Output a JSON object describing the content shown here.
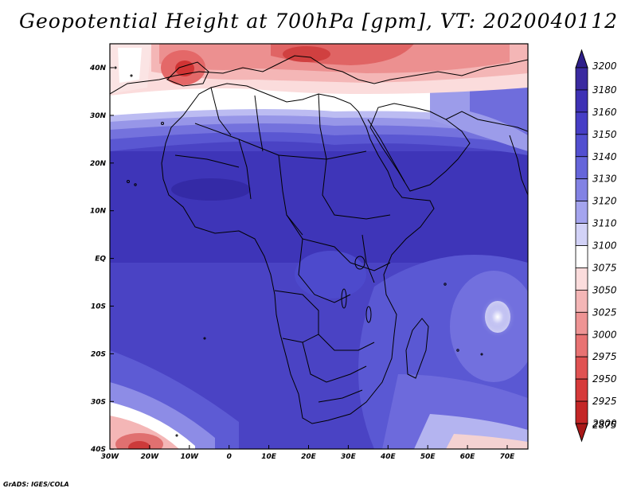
{
  "title": "Geopotential Height at 700hPa [gpm], VT: 2020040112",
  "credit": "GrADS: IGES/COLA",
  "map": {
    "lon_labels": [
      "30W",
      "20W",
      "10W",
      "0",
      "10E",
      "20E",
      "30E",
      "40E",
      "50E",
      "60E",
      "70E"
    ],
    "lat_labels": [
      "40N",
      "30N",
      "20N",
      "10N",
      "EQ",
      "10S",
      "20S",
      "30S",
      "40S"
    ]
  },
  "colorbar": {
    "labels": [
      "3200",
      "3180",
      "3160",
      "3150",
      "3140",
      "3130",
      "3120",
      "3110",
      "3100",
      "3075",
      "3050",
      "3025",
      "3000",
      "2975",
      "2950",
      "2925",
      "2900",
      "2875"
    ],
    "colors": {
      "max_arrow": "#2e1f8a",
      "min_arrow": "#a81818",
      "boxes": [
        "#3a2aa0",
        "#3e31b5",
        "#463ec6",
        "#524fd0",
        "#6565da",
        "#8282e4",
        "#a4a4ee",
        "#d2d2f7",
        "#ffffff",
        "#fbdcdc",
        "#f4b6b6",
        "#ee9494",
        "#e87272",
        "#e05252",
        "#d63a3a",
        "#c42626"
      ]
    }
  }
}
